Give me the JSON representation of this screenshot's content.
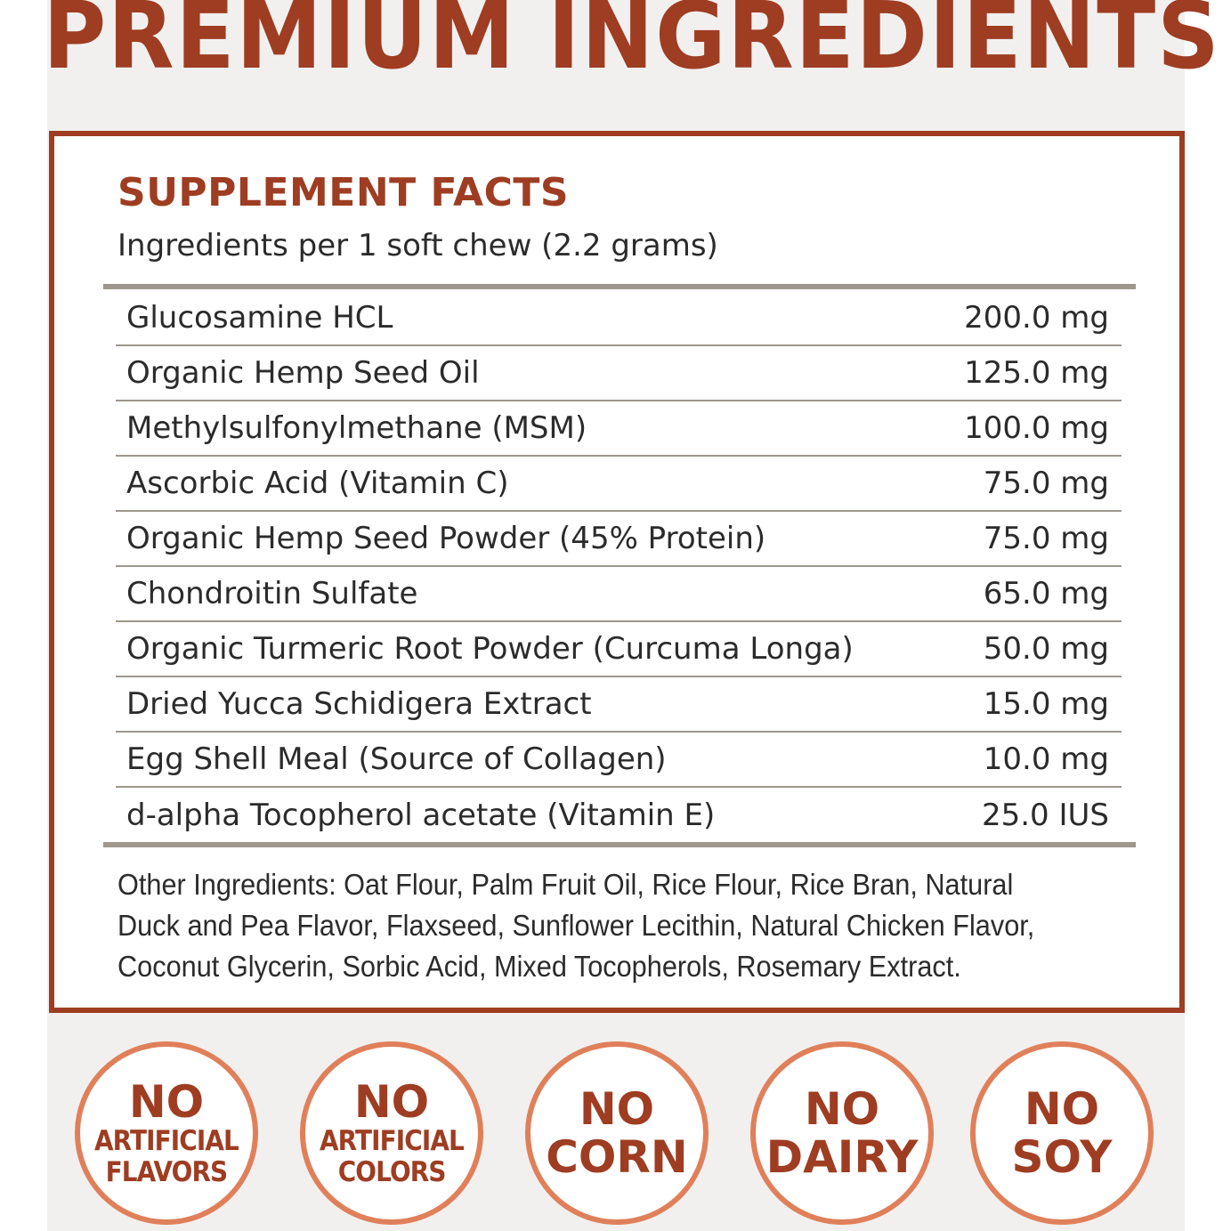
{
  "headline": "PREMIUM INGREDIENTS",
  "facts": {
    "title": "SUPPLEMENT FACTS",
    "subtitle": "Ingredients per 1 soft chew (2.2 grams)",
    "rows": [
      {
        "name": "Glucosamine HCL",
        "amount": "200.0 mg"
      },
      {
        "name": "Organic Hemp Seed Oil",
        "amount": "125.0 mg"
      },
      {
        "name": "Methylsulfonylmethane (MSM)",
        "amount": "100.0 mg"
      },
      {
        "name": "Ascorbic Acid (Vitamin C)",
        "amount": "75.0 mg"
      },
      {
        "name": "Organic Hemp Seed Powder (45% Protein)",
        "amount": "75.0 mg"
      },
      {
        "name": "Chondroitin Sulfate",
        "amount": "65.0 mg"
      },
      {
        "name": "Organic Turmeric Root Powder (Curcuma Longa)",
        "amount": "50.0 mg"
      },
      {
        "name": "Dried Yucca Schidigera Extract",
        "amount": "15.0 mg"
      },
      {
        "name": "Egg Shell Meal (Source of Collagen)",
        "amount": "10.0 mg"
      },
      {
        "name": "d-alpha Tocopherol acetate (Vitamin E)",
        "amount": "25.0 IUS"
      }
    ],
    "other_ingredients": "Other Ingredients: Oat Flour, Palm Fruit Oil, Rice Flour, Rice Bran, Natural Duck and Pea Flavor, Flaxseed, Sunflower Lecithin, Natural Chicken Flavor, Coconut Glycerin, Sorbic Acid, Mixed Tocopherols, Rosemary Extract."
  },
  "badges": [
    {
      "top": "NO",
      "line1": "ARTIFICIAL",
      "line2": "FLAVORS"
    },
    {
      "top": "NO",
      "line1": "ARTIFICIAL",
      "line2": "COLORS"
    },
    {
      "top": "NO",
      "line1": "CORN"
    },
    {
      "top": "NO",
      "line1": "DAIRY"
    },
    {
      "top": "NO",
      "line1": "SOY"
    }
  ],
  "colors": {
    "brand": "#9e3d22",
    "badge_ring": "#e0805a",
    "rule": "#9d978d",
    "panel_bg": "#f2f0ef"
  }
}
